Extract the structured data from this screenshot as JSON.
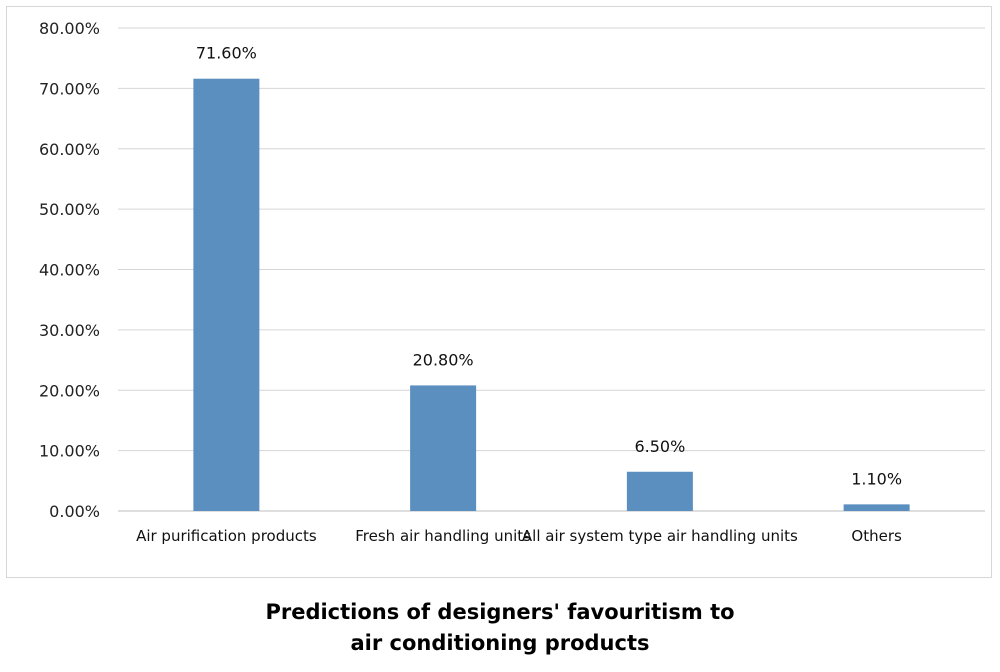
{
  "chart_data": {
    "type": "bar",
    "title": [
      "Predictions of designers'  favouritism to",
      "air conditioning products"
    ],
    "categories": [
      "Air purification products",
      "Fresh air handling units",
      "All air system type air handling units",
      "Others"
    ],
    "values": [
      71.6,
      20.8,
      6.5,
      1.1
    ],
    "data_labels": [
      "71.60%",
      "20.80%",
      "6.50%",
      "1.10%"
    ],
    "y_ticks": [
      "0.00%",
      "10.00%",
      "20.00%",
      "30.00%",
      "40.00%",
      "50.00%",
      "60.00%",
      "70.00%",
      "80.00%"
    ],
    "ylim": [
      0,
      80
    ],
    "grid": true,
    "legend": "none",
    "bar_color": "#5b8fbf"
  }
}
